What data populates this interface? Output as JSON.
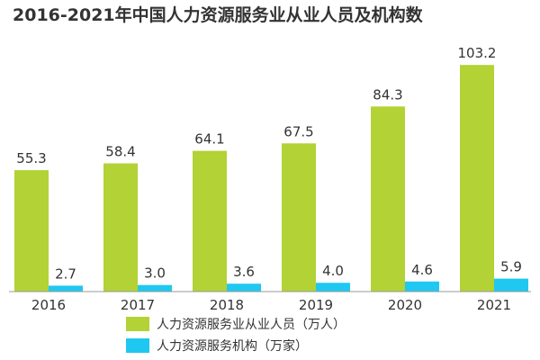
{
  "chart_data": {
    "type": "bar",
    "title": "2016-2021年中国人力资源服务业从业人员及机构数",
    "categories": [
      "2016",
      "2017",
      "2018",
      "2019",
      "2020",
      "2021"
    ],
    "series": [
      {
        "name": "人力资源服务业从业人员（万人）",
        "values": [
          55.3,
          58.4,
          64.1,
          67.5,
          84.3,
          103.2
        ],
        "color": "#b2d235"
      },
      {
        "name": "人力资源服务机构（万家）",
        "values": [
          2.7,
          3.0,
          3.6,
          4.0,
          4.6,
          5.9
        ],
        "color": "#1ec8f0"
      }
    ],
    "ylim": [
      0,
      110
    ],
    "grid": false,
    "legend": "bottom"
  }
}
